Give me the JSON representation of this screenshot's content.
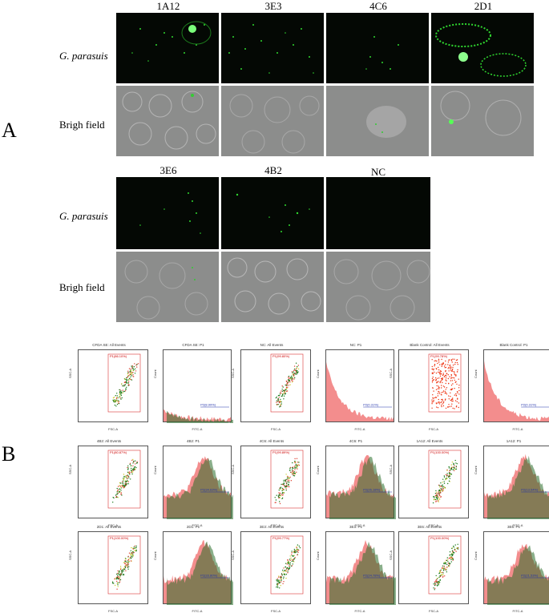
{
  "panels": {
    "a": "A",
    "b": "B"
  },
  "panel_a": {
    "columns_top": [
      "1A12",
      "3E3",
      "4C6",
      "2D1"
    ],
    "columns_bottom": [
      "3E6",
      "4B2",
      "NC"
    ],
    "row_labels": {
      "fluorescence": "G. parasuis",
      "bright": "Brigh field"
    }
  },
  "panel_b": {
    "plots": [
      {
        "scatter_title": "CFDA SE: All Events",
        "hist_title": "CFDA SE: P1",
        "gate": "P1(86.10%)",
        "marker": "P2(8.99%)"
      },
      {
        "scatter_title": "NC: All Events",
        "hist_title": "NC: P1",
        "gate": "P1(99.80%)",
        "marker": "P2(0.31%)"
      },
      {
        "scatter_title": "Blank Control: All Events",
        "hist_title": "Blank Control: P1",
        "gate": "P1(99.78%)",
        "marker": "P2(0.31%)"
      },
      {
        "scatter_title": "4B2: All Events",
        "hist_title": "4B2: P1",
        "gate": "P1(80.87%)",
        "marker": "P2(34.63%)"
      },
      {
        "scatter_title": "4C6: All Events",
        "hist_title": "4C6: P1",
        "gate": "P1(99.89%)",
        "marker": "P2(26.18%)"
      },
      {
        "scatter_title": "1A12: All Events",
        "hist_title": "1A12: P1",
        "gate": "P1(100.00%)",
        "marker": "P2(13.54%)"
      },
      {
        "scatter_title": "2D1: All Events",
        "hist_title": "2D1: P1",
        "gate": "P1(100.00%)",
        "marker": "P2(33.80%)"
      },
      {
        "scatter_title": "3E3: All Events",
        "hist_title": "3E3: P1",
        "gate": "P1(99.77%)",
        "marker": "P2(24.78%)"
      },
      {
        "scatter_title": "3E6: All Events",
        "hist_title": "3E6: P1",
        "gate": "P1(100.00%)",
        "marker": "P2(21.53%)"
      }
    ],
    "axes": {
      "scatter_x": "FSC-A",
      "scatter_y": "SSC-A",
      "hist_x": "FITC-A",
      "hist_y": "Count"
    }
  }
}
